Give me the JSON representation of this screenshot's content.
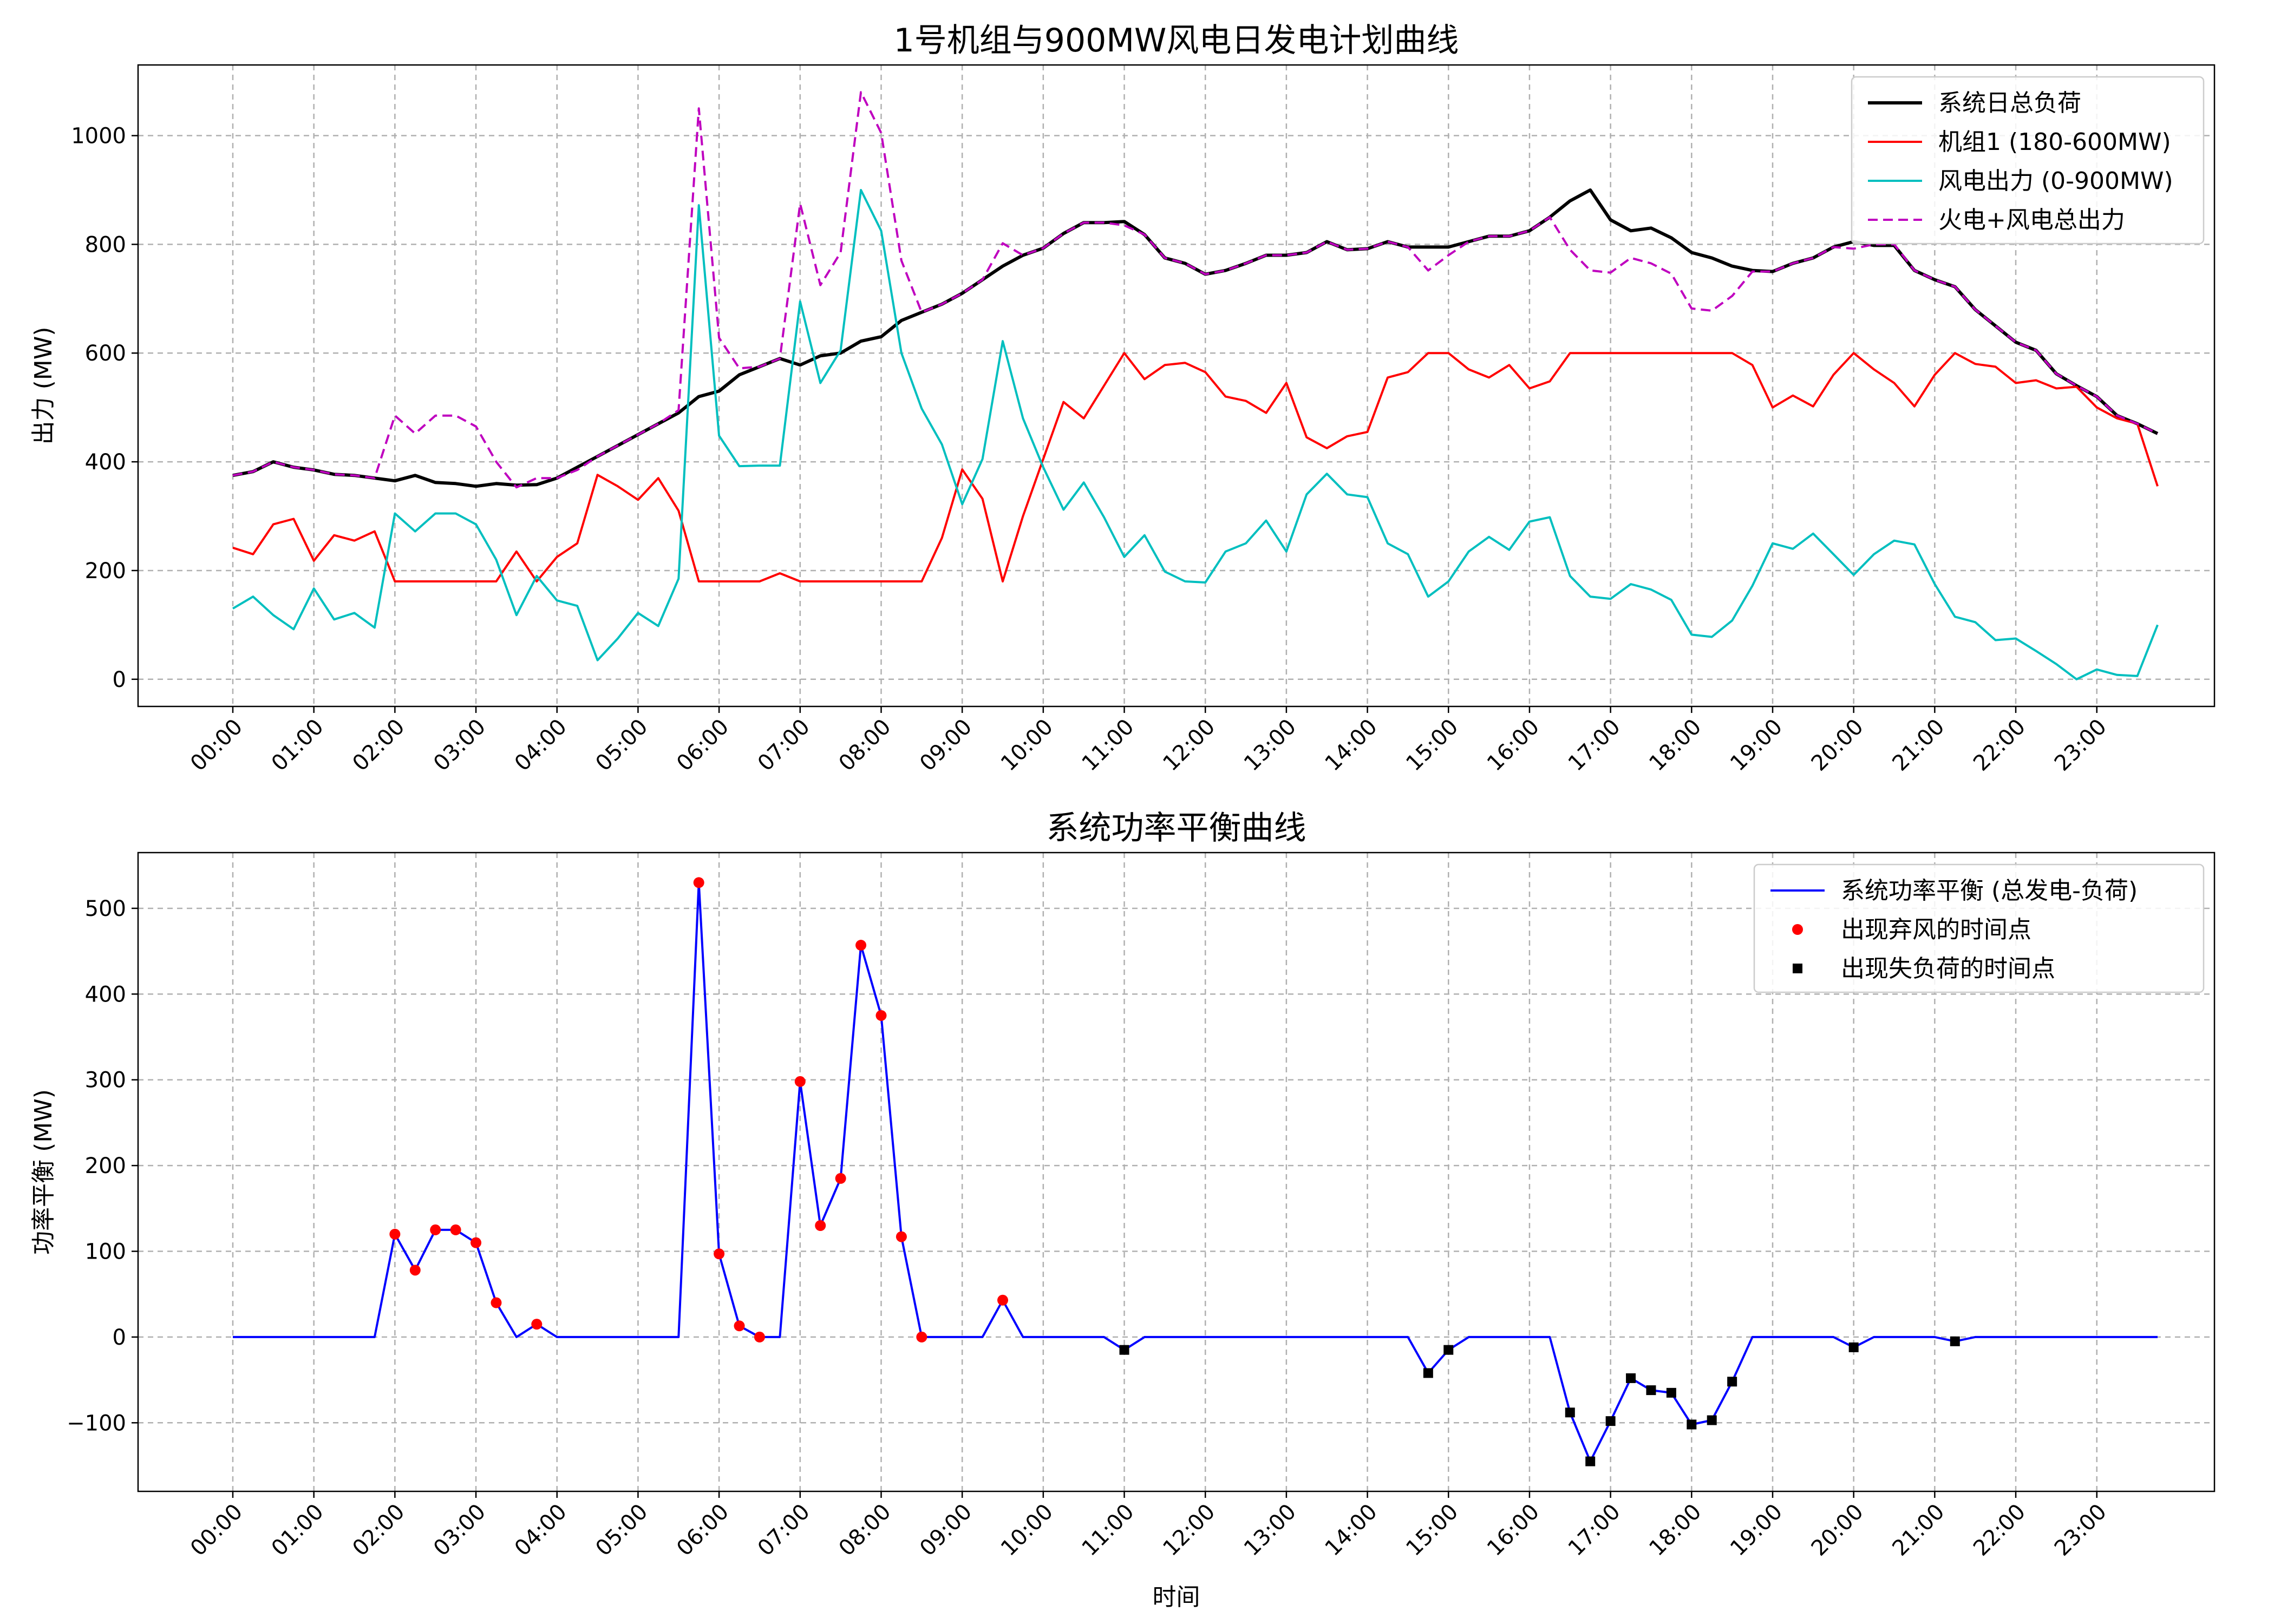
{
  "chart_data": [
    {
      "type": "line",
      "title": "1号机组与900MW风电日发电计划曲线",
      "xlabel": "",
      "ylabel": "出力 (MW)",
      "ylim": [
        -50,
        1130
      ],
      "yticks": [
        0,
        200,
        400,
        600,
        800,
        1000
      ],
      "x_tick_labels": [
        "00:00",
        "01:00",
        "02:00",
        "03:00",
        "04:00",
        "05:00",
        "06:00",
        "07:00",
        "08:00",
        "09:00",
        "10:00",
        "11:00",
        "12:00",
        "13:00",
        "14:00",
        "15:00",
        "16:00",
        "17:00",
        "18:00",
        "19:00",
        "20:00",
        "21:00",
        "22:00",
        "23:00"
      ],
      "x_interval_minutes": 15,
      "grid": true,
      "legend_position": "top-right",
      "series": [
        {
          "name": "系统日总负荷",
          "color": "#000000",
          "style": "solid",
          "width": 6,
          "values": [
            375,
            382,
            400,
            390,
            385,
            377,
            375,
            370,
            365,
            375,
            362,
            360,
            355,
            360,
            357,
            358,
            370,
            390,
            410,
            430,
            450,
            470,
            490,
            520,
            530,
            560,
            575,
            590,
            578,
            595,
            600,
            622,
            630,
            660,
            675,
            690,
            710,
            735,
            760,
            780,
            793,
            820,
            840,
            840,
            842,
            818,
            775,
            765,
            745,
            752,
            765,
            780,
            780,
            785,
            805,
            790,
            792,
            805,
            795,
            795,
            795,
            805,
            815,
            815,
            825,
            850,
            880,
            900,
            845,
            825,
            830,
            812,
            785,
            775,
            760,
            752,
            750,
            765,
            775,
            795,
            805,
            798,
            798,
            752,
            735,
            722,
            680,
            650,
            620,
            605,
            562,
            540,
            520,
            485,
            470,
            452
          ]
        },
        {
          "name": "机组1 (180-600MW)",
          "color": "#ff0000",
          "style": "solid",
          "width": 4,
          "values": [
            242,
            230,
            285,
            295,
            218,
            265,
            255,
            272,
            180,
            180,
            180,
            180,
            180,
            180,
            235,
            180,
            225,
            250,
            376,
            355,
            330,
            370,
            310,
            180,
            180,
            180,
            180,
            195,
            180,
            180,
            180,
            180,
            180,
            180,
            180,
            260,
            386,
            332,
            180,
            300,
            405,
            510,
            480,
            540,
            600,
            552,
            578,
            582,
            565,
            520,
            512,
            490,
            545,
            445,
            425,
            447,
            455,
            555,
            565,
            600,
            600,
            570,
            555,
            578,
            535,
            548,
            600,
            600,
            600,
            600,
            600,
            600,
            600,
            600,
            600,
            578,
            500,
            522,
            502,
            560,
            600,
            570,
            545,
            502,
            560,
            600,
            580,
            575,
            545,
            550,
            535,
            538,
            500,
            480,
            470,
            355
          ]
        },
        {
          "name": "风电出力 (0-900MW)",
          "color": "#00bfbf",
          "style": "solid",
          "width": 4,
          "values": [
            130,
            152,
            118,
            92,
            167,
            110,
            122,
            95,
            305,
            272,
            305,
            305,
            285,
            220,
            118,
            190,
            145,
            135,
            35,
            75,
            122,
            98,
            185,
            872,
            448,
            392,
            393,
            393,
            695,
            545,
            605,
            900,
            825,
            600,
            498,
            432,
            322,
            405,
            622,
            480,
            390,
            312,
            362,
            298,
            225,
            265,
            198,
            180,
            178,
            235,
            250,
            292,
            235,
            340,
            378,
            340,
            335,
            250,
            230,
            152,
            180,
            235,
            262,
            238,
            290,
            298,
            190,
            152,
            148,
            175,
            165,
            146,
            82,
            78,
            108,
            172,
            250,
            240,
            268,
            230,
            192,
            230,
            255,
            248,
            175,
            115,
            105,
            72,
            75,
            52,
            28,
            0,
            18,
            8,
            6,
            100
          ]
        },
        {
          "name": "火电+风电总出力",
          "color": "#bf00bf",
          "style": "dashed",
          "width": 4,
          "values": [
            375,
            382,
            400,
            390,
            385,
            377,
            375,
            370,
            485,
            452,
            485,
            485,
            465,
            400,
            353,
            370,
            370,
            385,
            410,
            430,
            450,
            470,
            495,
            1050,
            628,
            572,
            575,
            590,
            875,
            725,
            785,
            1080,
            1005,
            770,
            675,
            690,
            710,
            735,
            802,
            780,
            793,
            820,
            840,
            840,
            835,
            818,
            775,
            765,
            745,
            752,
            765,
            780,
            780,
            785,
            805,
            790,
            792,
            805,
            795,
            752,
            780,
            805,
            815,
            815,
            825,
            850,
            790,
            752,
            748,
            775,
            765,
            746,
            682,
            678,
            705,
            750,
            750,
            765,
            775,
            795,
            792,
            800,
            800,
            752,
            735,
            722,
            680,
            650,
            620,
            605,
            562,
            540,
            520,
            485,
            470,
            452
          ]
        }
      ]
    },
    {
      "type": "line",
      "title": "系统功率平衡曲线",
      "xlabel": "时间",
      "ylabel": "功率平衡 (MW)",
      "ylim": [
        -180,
        565
      ],
      "yticks": [
        -100,
        0,
        100,
        200,
        300,
        400,
        500
      ],
      "x_tick_labels": [
        "00:00",
        "01:00",
        "02:00",
        "03:00",
        "04:00",
        "05:00",
        "06:00",
        "07:00",
        "08:00",
        "09:00",
        "10:00",
        "11:00",
        "12:00",
        "13:00",
        "14:00",
        "15:00",
        "16:00",
        "17:00",
        "18:00",
        "19:00",
        "20:00",
        "21:00",
        "22:00",
        "23:00"
      ],
      "x_interval_minutes": 15,
      "grid": true,
      "legend_position": "top-right",
      "series": [
        {
          "name": "系统功率平衡 (总发电-负荷)",
          "color": "#0000ff",
          "style": "solid",
          "width": 4,
          "values": [
            0,
            0,
            0,
            0,
            0,
            0,
            0,
            0,
            120,
            78,
            125,
            125,
            110,
            40,
            0,
            15,
            0,
            0,
            0,
            0,
            0,
            0,
            0,
            530,
            97,
            13,
            0,
            0,
            298,
            130,
            185,
            457,
            375,
            117,
            0,
            0,
            0,
            0,
            43,
            0,
            0,
            0,
            0,
            0,
            -15,
            0,
            0,
            0,
            0,
            0,
            0,
            0,
            0,
            0,
            0,
            0,
            0,
            0,
            0,
            -42,
            -15,
            0,
            0,
            0,
            0,
            0,
            -88,
            -145,
            -98,
            -48,
            -62,
            -65,
            -102,
            -97,
            -52,
            0,
            0,
            0,
            0,
            0,
            -12,
            0,
            0,
            0,
            0,
            -5,
            0,
            0,
            0,
            0,
            0,
            0,
            0,
            0,
            0,
            0
          ]
        },
        {
          "name": "出现弃风的时间点",
          "color": "#ff0000",
          "marker": "circle",
          "indices": [
            8,
            9,
            10,
            11,
            12,
            13,
            15,
            23,
            24,
            25,
            26,
            28,
            29,
            30,
            31,
            32,
            33,
            34,
            38
          ]
        },
        {
          "name": "出现失负荷的时间点",
          "color": "#000000",
          "marker": "square",
          "indices": [
            44,
            59,
            60,
            66,
            67,
            68,
            69,
            70,
            71,
            72,
            73,
            74,
            80,
            85
          ]
        }
      ]
    }
  ]
}
